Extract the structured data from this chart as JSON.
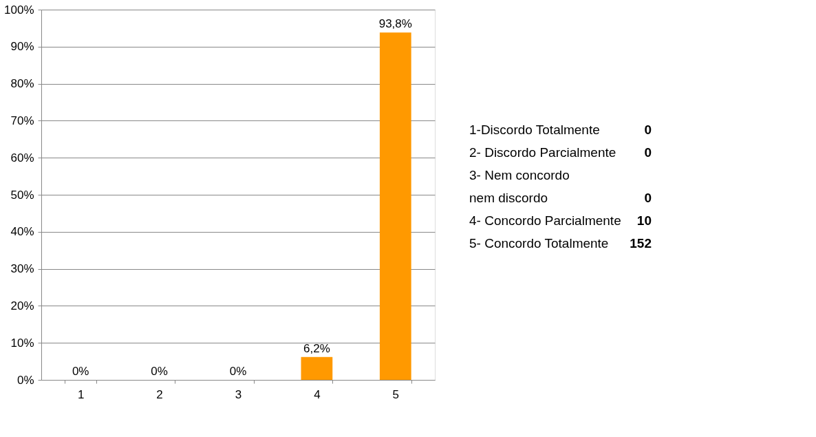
{
  "chart_data": {
    "type": "bar",
    "categories": [
      "1",
      "2",
      "3",
      "4",
      "5"
    ],
    "values": [
      0,
      0,
      0,
      6.2,
      93.8
    ],
    "value_labels": [
      "0%",
      "0%",
      "0%",
      "6,2%",
      "93,8%"
    ],
    "color": "#ff9900",
    "ylim": [
      0,
      100
    ],
    "yticks": [
      {
        "value": 0,
        "label": "0%"
      },
      {
        "value": 10,
        "label": "10%"
      },
      {
        "value": 20,
        "label": "20%"
      },
      {
        "value": 30,
        "label": "30%"
      },
      {
        "value": 40,
        "label": "40%"
      },
      {
        "value": 50,
        "label": "50%"
      },
      {
        "value": 60,
        "label": "60%"
      },
      {
        "value": 70,
        "label": "70%"
      },
      {
        "value": 80,
        "label": "80%"
      },
      {
        "value": 90,
        "label": "90%"
      },
      {
        "value": 100,
        "label": "100%"
      }
    ],
    "grid": "y",
    "annotations": [
      "1-Discordo Totalmente",
      "0",
      "2- Discordo Parcialmente",
      "0",
      "3- Nem concordo\nnem discordo",
      "0",
      "4- Concordo Parcialmente",
      "10",
      "5- Concordo Totalmente",
      "152"
    ]
  }
}
